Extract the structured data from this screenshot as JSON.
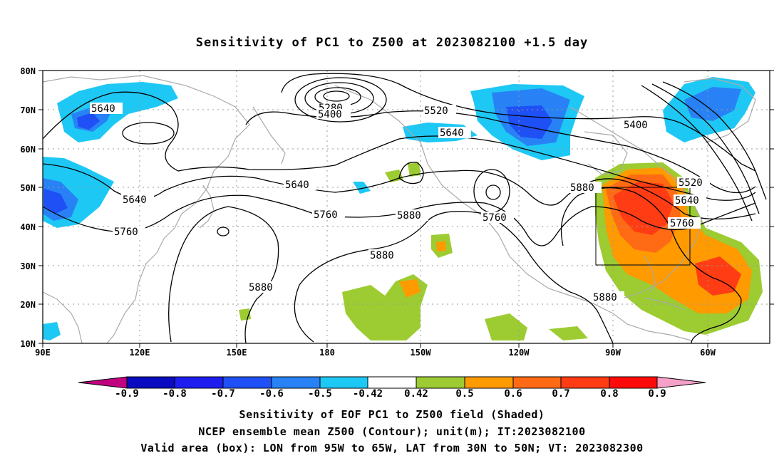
{
  "title": "Sensitivity of PC1 to Z500 at 2023082100 +1.5 day",
  "map": {
    "lat_labels": [
      "80N",
      "70N",
      "60N",
      "50N",
      "40N",
      "30N",
      "20N",
      "10N"
    ],
    "lon_labels": [
      "90E",
      "120E",
      "150E",
      "180",
      "150W",
      "120W",
      "90W",
      "60W"
    ],
    "contour_labels": [
      {
        "text": "5640",
        "id": "c5640-a"
      },
      {
        "text": "5280",
        "id": "c5280"
      },
      {
        "text": "5400",
        "id": "c5400-a"
      },
      {
        "text": "5520",
        "id": "c5520-a"
      },
      {
        "text": "5640",
        "id": "c5640-b"
      },
      {
        "text": "5400",
        "id": "c5400-b"
      },
      {
        "text": "5520",
        "id": "c5520-b"
      },
      {
        "text": "5640",
        "id": "c5640-c"
      },
      {
        "text": "5640",
        "id": "c5640-d"
      },
      {
        "text": "5640",
        "id": "c5640-e"
      },
      {
        "text": "5880",
        "id": "c5880-a"
      },
      {
        "text": "5760",
        "id": "c5760-a"
      },
      {
        "text": "5880",
        "id": "c5880-b"
      },
      {
        "text": "5760",
        "id": "c5760-b"
      },
      {
        "text": "5760",
        "id": "c5760-c"
      },
      {
        "text": "5760",
        "id": "c5760-d"
      },
      {
        "text": "5880",
        "id": "c5880-c"
      },
      {
        "text": "5880",
        "id": "c5880-d"
      },
      {
        "text": "5880",
        "id": "c5880-e"
      }
    ],
    "valid_box": {
      "lon_from": "95W",
      "lon_to": "65W",
      "lat_from": "30N",
      "lat_to": "50N"
    }
  },
  "colorbar": {
    "labels": [
      "-0.9",
      "-0.8",
      "-0.7",
      "-0.6",
      "-0.5",
      "-0.42",
      "0.42",
      "0.5",
      "0.6",
      "0.7",
      "0.8",
      "0.9"
    ],
    "colors": [
      "#c0007f",
      "#0a0ac0",
      "#1e1ef0",
      "#1e50f5",
      "#2882f5",
      "#1ec8f5",
      "#ffffff",
      "#9ccc32",
      "#ff9a00",
      "#ff6a14",
      "#ff3c14",
      "#ff0a0a",
      "#f5a0c8"
    ]
  },
  "footer": {
    "line1": "Sensitivity of EOF PC1 to Z500 field (Shaded)",
    "line2": "NCEP ensemble mean Z500 (Contour); unit(m); IT:2023082100",
    "line3": "Valid area (box): LON from 95W to 65W, LAT from 30N to 50N; VT: 2023082300"
  }
}
